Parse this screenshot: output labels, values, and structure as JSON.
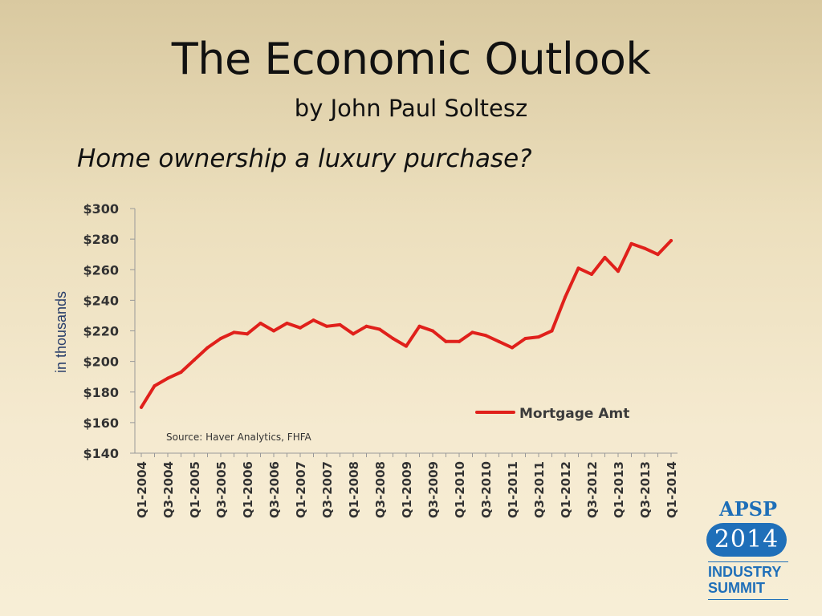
{
  "slide": {
    "title": "The Economic Outlook",
    "subtitle": "by John Paul Soltesz",
    "heading": "Home ownership a luxury purchase?"
  },
  "logo": {
    "brand": "APSP",
    "year": "2014",
    "line1": "INDUSTRY",
    "line2": "SUMMIT"
  },
  "chart_data": {
    "type": "line",
    "title": "",
    "xlabel": "",
    "ylabel": "in thousands",
    "source": "Source: Haver Analytics, FHFA",
    "ylim": [
      140,
      300
    ],
    "yticks": [
      140,
      160,
      180,
      200,
      220,
      240,
      260,
      280,
      300
    ],
    "ytick_labels": [
      "$140",
      "$160",
      "$180",
      "$200",
      "$220",
      "$240",
      "$260",
      "$280",
      "$300"
    ],
    "xtick_labels": [
      "Q1-2004",
      "Q3-2004",
      "Q1-2005",
      "Q3-2005",
      "Q1-2006",
      "Q3-2006",
      "Q1-2007",
      "Q3-2007",
      "Q1-2008",
      "Q3-2008",
      "Q1-2009",
      "Q3-2009",
      "Q1-2010",
      "Q3-2010",
      "Q1-2011",
      "Q3-2011",
      "Q1-2012",
      "Q3-2012",
      "Q1-2013",
      "Q3-2013",
      "Q1-2014"
    ],
    "legend_position": "right",
    "grid": false,
    "colors": {
      "series": "#e0201b",
      "axis_text": "#333333",
      "axis_line": "#999999"
    },
    "x": [
      "Q1-2004",
      "Q2-2004",
      "Q3-2004",
      "Q4-2004",
      "Q1-2005",
      "Q2-2005",
      "Q3-2005",
      "Q4-2005",
      "Q1-2006",
      "Q2-2006",
      "Q3-2006",
      "Q4-2006",
      "Q1-2007",
      "Q2-2007",
      "Q3-2007",
      "Q4-2007",
      "Q1-2008",
      "Q2-2008",
      "Q3-2008",
      "Q4-2008",
      "Q1-2009",
      "Q2-2009",
      "Q3-2009",
      "Q4-2009",
      "Q1-2010",
      "Q2-2010",
      "Q3-2010",
      "Q4-2010",
      "Q1-2011",
      "Q2-2011",
      "Q3-2011",
      "Q4-2011",
      "Q1-2012",
      "Q2-2012",
      "Q3-2012",
      "Q4-2012",
      "Q1-2013",
      "Q2-2013",
      "Q3-2013",
      "Q4-2013",
      "Q1-2014"
    ],
    "series": [
      {
        "name": "Mortgage Amt",
        "values": [
          170,
          184,
          189,
          193,
          201,
          209,
          215,
          219,
          218,
          225,
          220,
          225,
          222,
          227,
          223,
          224,
          218,
          223,
          221,
          215,
          210,
          223,
          220,
          213,
          213,
          219,
          217,
          213,
          209,
          215,
          216,
          220,
          242,
          261,
          257,
          268,
          259,
          277,
          274,
          270,
          279
        ]
      }
    ]
  }
}
